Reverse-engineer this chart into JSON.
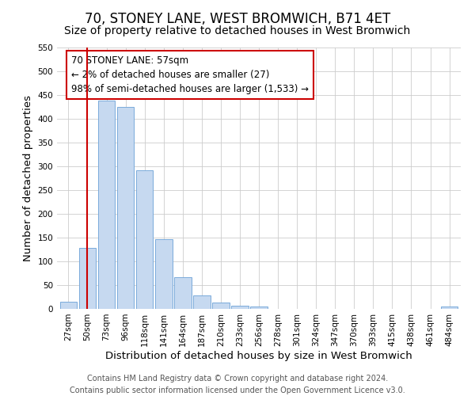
{
  "title": "70, STONEY LANE, WEST BROMWICH, B71 4ET",
  "subtitle": "Size of property relative to detached houses in West Bromwich",
  "xlabel": "Distribution of detached houses by size in West Bromwich",
  "ylabel": "Number of detached properties",
  "bar_labels": [
    "27sqm",
    "50sqm",
    "73sqm",
    "96sqm",
    "118sqm",
    "141sqm",
    "164sqm",
    "187sqm",
    "210sqm",
    "233sqm",
    "256sqm",
    "278sqm",
    "301sqm",
    "324sqm",
    "347sqm",
    "370sqm",
    "393sqm",
    "415sqm",
    "438sqm",
    "461sqm",
    "484sqm"
  ],
  "bar_values": [
    15,
    128,
    438,
    425,
    291,
    147,
    67,
    29,
    13,
    7,
    5,
    0,
    0,
    0,
    0,
    0,
    0,
    0,
    0,
    0,
    5
  ],
  "bar_color": "#c6d9f0",
  "bar_edge_color": "#7aaadb",
  "vline_x": 1,
  "vline_color": "#cc0000",
  "annotation_line1": "70 STONEY LANE: 57sqm",
  "annotation_line2": "← 2% of detached houses are smaller (27)",
  "annotation_line3": "98% of semi-detached houses are larger (1,533) →",
  "annotation_box_color": "#ffffff",
  "annotation_box_edge": "#cc0000",
  "ylim": [
    0,
    550
  ],
  "yticks": [
    0,
    50,
    100,
    150,
    200,
    250,
    300,
    350,
    400,
    450,
    500,
    550
  ],
  "footer_line1": "Contains HM Land Registry data © Crown copyright and database right 2024.",
  "footer_line2": "Contains public sector information licensed under the Open Government Licence v3.0.",
  "title_fontsize": 12,
  "subtitle_fontsize": 10,
  "axis_label_fontsize": 9.5,
  "tick_fontsize": 7.5,
  "annotation_fontsize": 8.5,
  "footer_fontsize": 7
}
